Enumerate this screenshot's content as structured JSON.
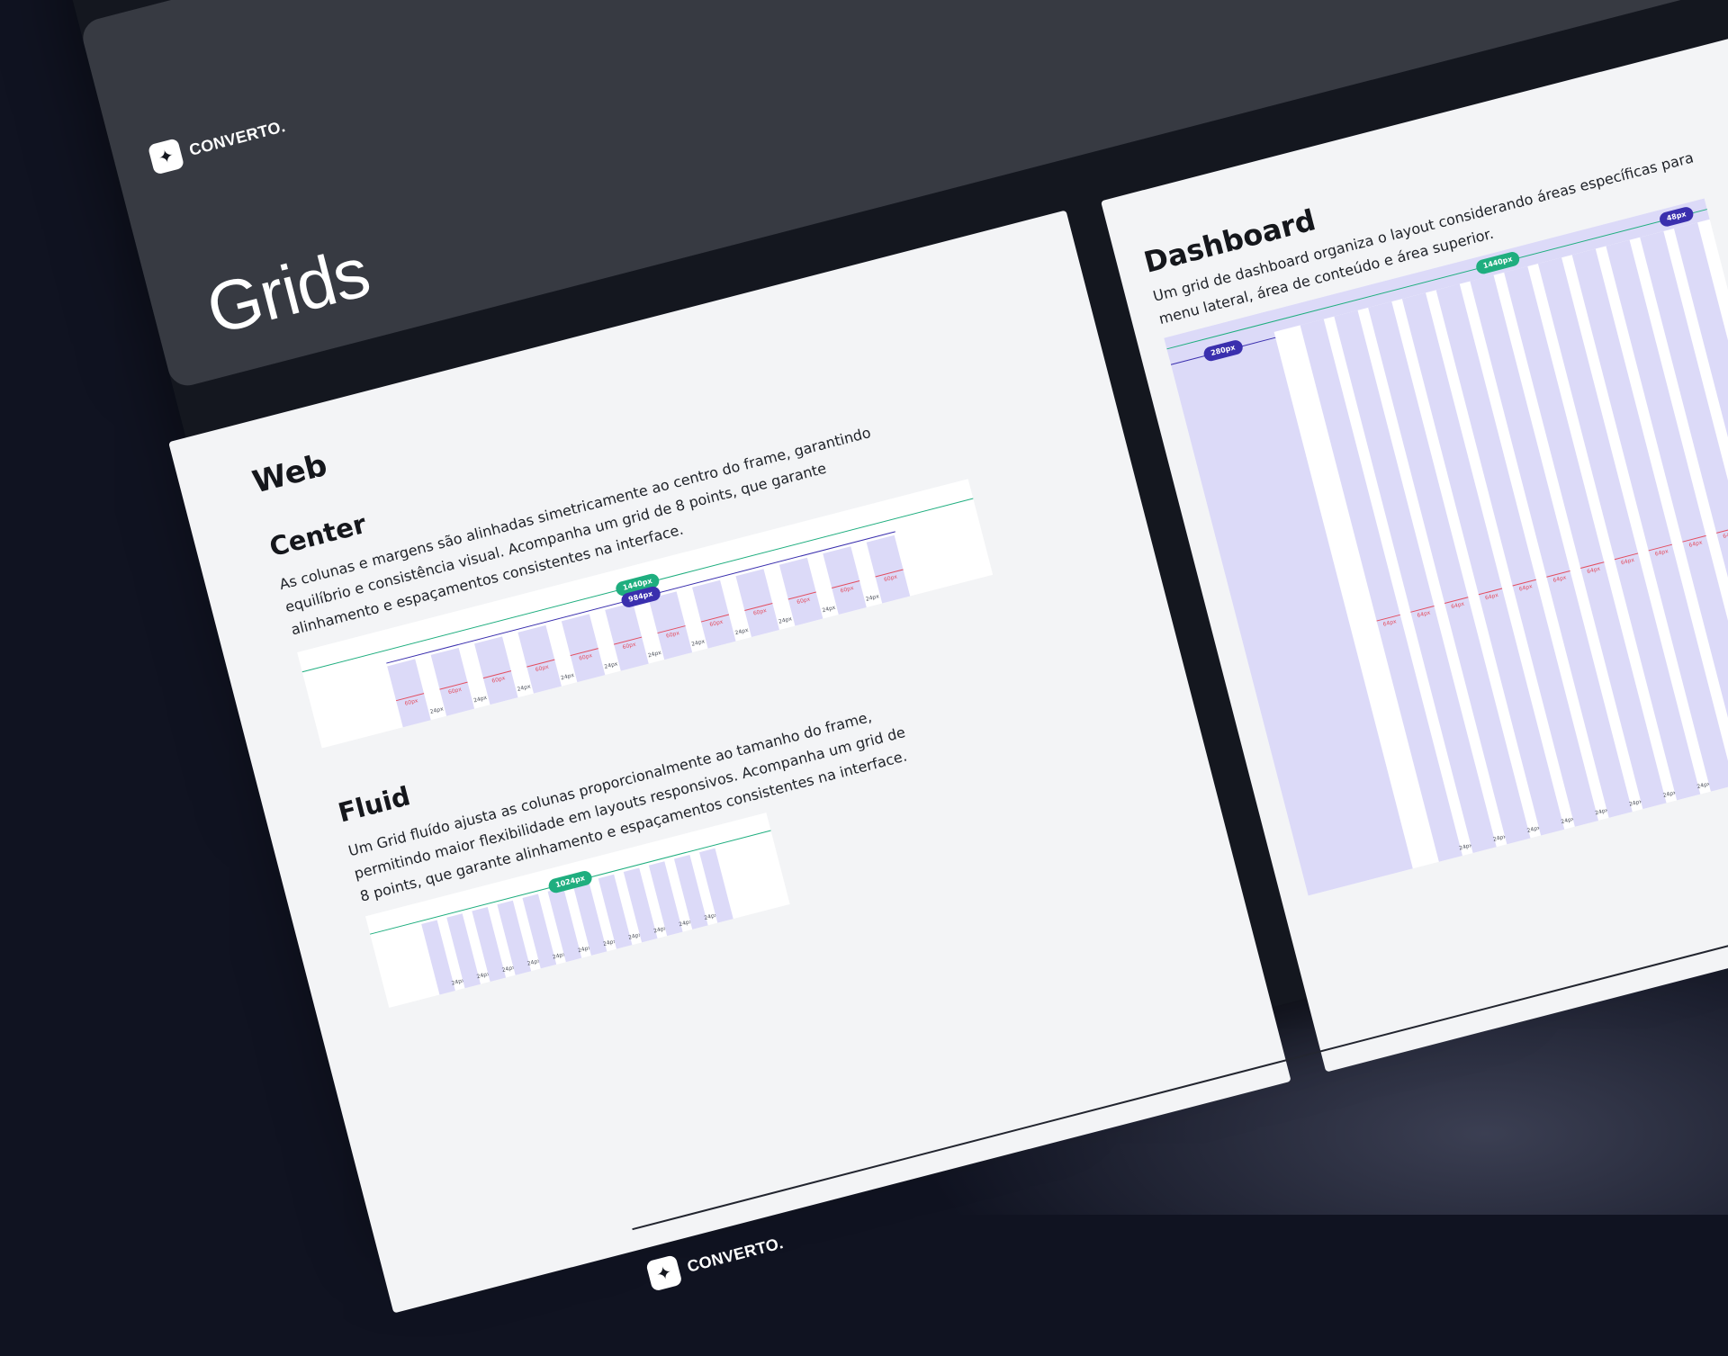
{
  "brand": {
    "name": "CONVERTO.",
    "mark_icon": "sparkle-icon"
  },
  "header": {
    "title": "Grids"
  },
  "web": {
    "title": "Web",
    "center": {
      "title": "Center",
      "description": "As colunas e margens são alinhadas simetricamente ao centro do frame, garantindo equilíbrio e consistência visual. Acompanha um grid de 8 points, que garante alinhamento e espaçamentos consistentes na interface.",
      "frame_label": "1440px",
      "content_label": "984px",
      "column_label": "60px",
      "gutter_label": "24px",
      "columns": 12
    },
    "fluid": {
      "title": "Fluid",
      "description": "Um Grid fluído ajusta as colunas proporcionalmente ao tamanho do frame, permitindo maior flexibilidade em layouts responsivos. Acompanha um grid de 8 points, que garante alinhamento e espaçamentos consistentes na interface.",
      "frame_label": "1024px",
      "gutter_label": "24px",
      "columns": 12
    }
  },
  "dashboard": {
    "title": "Dashboard",
    "description": "Um grid de dashboard organiza o layout considerando áreas específicas para menu lateral, área de conteúdo e área superior.",
    "frame_label": "1440px",
    "sidebar_label": "280px",
    "topbar_label": "48px",
    "column_label": "64px",
    "gutter_label": "24px",
    "columns": 12
  },
  "colors": {
    "background": "#101321",
    "header_card": "#373a42",
    "panel": "#f3f4f6",
    "column_fill": "#dcdaf8",
    "pill_green": "#1fae7f",
    "pill_indigo": "#3a2fae",
    "measure_red": "#e34d5f"
  }
}
